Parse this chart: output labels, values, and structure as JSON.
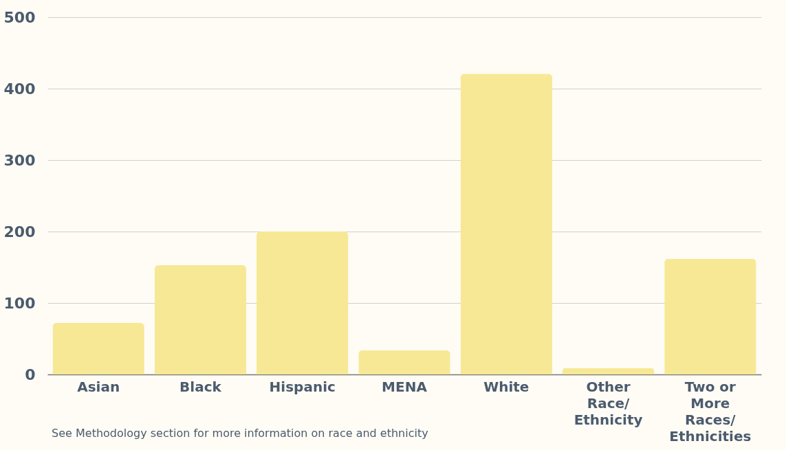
{
  "chart_data": {
    "type": "bar",
    "categories": [
      "Asian",
      "Black",
      "Hispanic",
      "MENA",
      "White",
      "Other Race/ Ethnicity",
      "Two or More Races/ Ethnicities"
    ],
    "values": [
      72,
      153,
      200,
      34,
      421,
      9,
      162
    ],
    "color": "#f7e896",
    "ylim": [
      0,
      500
    ],
    "yticks": [
      0,
      100,
      200,
      300,
      400,
      500
    ],
    "grid": "y",
    "annotations": [
      "See Methodology section for more information on race and ethnicity"
    ]
  }
}
